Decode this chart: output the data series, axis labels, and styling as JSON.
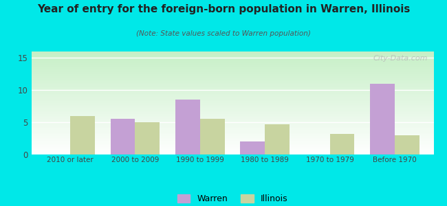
{
  "title": "Year of entry for the foreign-born population in Warren, Illinois",
  "subtitle": "(Note: State values scaled to Warren population)",
  "categories": [
    "2010 or later",
    "2000 to 2009",
    "1990 to 1999",
    "1980 to 1989",
    "1970 to 1979",
    "Before 1970"
  ],
  "warren_values": [
    0,
    5.5,
    8.5,
    2.0,
    0,
    11.0
  ],
  "illinois_values": [
    6.0,
    5.0,
    5.5,
    4.7,
    3.2,
    3.0
  ],
  "warren_color": "#c4a0d4",
  "illinois_color": "#c8d4a0",
  "background_outer": "#00e8e8",
  "ylim": [
    0,
    16
  ],
  "yticks": [
    0,
    5,
    10,
    15
  ],
  "bar_width": 0.38,
  "legend_labels": [
    "Warren",
    "Illinois"
  ],
  "watermark": "City-Data.com"
}
